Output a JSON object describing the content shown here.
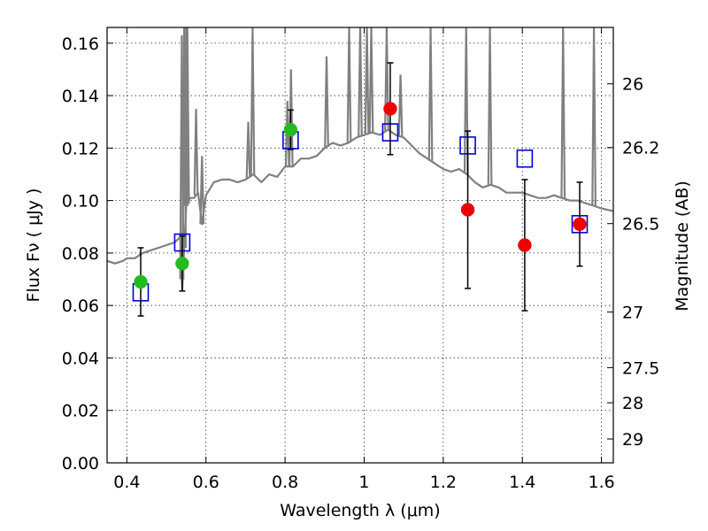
{
  "chart_data": {
    "type": "scatter",
    "xlabel": "Wavelength  λ (μm)",
    "ylabel": "Flux  Fν  ( μJy )",
    "y2label": "Magnitude (AB)",
    "xlim": [
      0.35,
      1.63
    ],
    "ylim": [
      0.0,
      0.166
    ],
    "xticks": [
      0.4,
      0.6,
      0.8,
      1.0,
      1.2,
      1.4,
      1.6
    ],
    "xtick_labels": [
      "0.4",
      "0.6",
      "0.8",
      "1",
      "1.2",
      "1.4",
      "1.6"
    ],
    "yticks": [
      0.0,
      0.02,
      0.04,
      0.06,
      0.08,
      0.1,
      0.12,
      0.14,
      0.16
    ],
    "ytick_labels": [
      "0.00",
      "0.02",
      "0.04",
      "0.06",
      "0.08",
      "0.10",
      "0.12",
      "0.14",
      "0.16"
    ],
    "y2ticks": [
      {
        "label": "26",
        "flux": 0.1445
      },
      {
        "label": "26.2",
        "flux": 0.1202
      },
      {
        "label": "26.5",
        "flux": 0.0912
      },
      {
        "label": "27",
        "flux": 0.0575
      },
      {
        "label": "27.5",
        "flux": 0.0363
      },
      {
        "label": "28",
        "flux": 0.0229
      },
      {
        "label": "29",
        "flux": 0.0091
      }
    ],
    "grid": true,
    "series": [
      {
        "kind": "model-spectrum",
        "color": "#808080",
        "x": [
          0.35,
          0.37,
          0.39,
          0.4,
          0.42,
          0.44,
          0.46,
          0.48,
          0.5,
          0.52,
          0.535,
          0.54,
          0.55,
          0.56,
          0.57,
          0.58,
          0.59,
          0.6,
          0.62,
          0.64,
          0.66,
          0.68,
          0.7,
          0.72,
          0.74,
          0.76,
          0.78,
          0.8,
          0.82,
          0.84,
          0.86,
          0.88,
          0.9,
          0.92,
          0.94,
          0.96,
          0.98,
          1.0,
          1.02,
          1.04,
          1.06,
          1.08,
          1.1,
          1.12,
          1.14,
          1.16,
          1.18,
          1.2,
          1.22,
          1.24,
          1.26,
          1.28,
          1.3,
          1.32,
          1.34,
          1.36,
          1.38,
          1.4,
          1.42,
          1.44,
          1.46,
          1.48,
          1.5,
          1.52,
          1.54,
          1.56,
          1.58,
          1.6,
          1.63
        ],
        "y": [
          0.077,
          0.076,
          0.077,
          0.078,
          0.078,
          0.08,
          0.081,
          0.082,
          0.083,
          0.084,
          0.086,
          0.066,
          0.098,
          0.101,
          0.101,
          0.103,
          0.091,
          0.102,
          0.107,
          0.108,
          0.108,
          0.107,
          0.108,
          0.11,
          0.107,
          0.11,
          0.109,
          0.113,
          0.113,
          0.116,
          0.116,
          0.117,
          0.12,
          0.122,
          0.121,
          0.122,
          0.124,
          0.125,
          0.126,
          0.125,
          0.127,
          0.125,
          0.124,
          0.121,
          0.118,
          0.116,
          0.114,
          0.112,
          0.111,
          0.112,
          0.11,
          0.107,
          0.105,
          0.106,
          0.105,
          0.103,
          0.103,
          0.103,
          0.102,
          0.101,
          0.101,
          0.102,
          0.101,
          0.1,
          0.1,
          0.099,
          0.098,
          0.097,
          0.096
        ]
      },
      {
        "kind": "model-lines",
        "color": "#808080",
        "x": [
          0.539,
          0.545,
          0.55,
          0.553,
          0.575,
          0.59,
          0.707,
          0.718,
          0.806,
          0.815,
          0.905,
          0.962,
          0.99,
          1.007,
          1.018,
          1.057,
          1.092,
          1.168,
          1.258,
          1.318,
          1.503,
          1.581
        ],
        "peak": [
          0.163,
          0.166,
          0.166,
          0.166,
          0.135,
          0.117,
          0.13,
          0.166,
          0.138,
          0.15,
          0.155,
          0.166,
          0.166,
          0.166,
          0.166,
          0.166,
          0.148,
          0.166,
          0.166,
          0.166,
          0.166,
          0.166
        ]
      },
      {
        "kind": "model-photometry",
        "color": "#0000dd",
        "x": [
          0.435,
          0.54,
          0.814,
          1.066,
          1.262,
          1.406,
          1.545
        ],
        "y": [
          0.065,
          0.084,
          0.123,
          0.126,
          0.121,
          0.116,
          0.091
        ]
      },
      {
        "kind": "observed",
        "color": "#22bb22",
        "x": [
          0.435,
          0.54,
          0.814
        ],
        "y": [
          0.069,
          0.076,
          0.127
        ],
        "err": [
          0.013,
          0.0105,
          0.0075
        ]
      },
      {
        "kind": "observed",
        "color": "#ee0000",
        "x": [
          1.066,
          1.262,
          1.406,
          1.545
        ],
        "y": [
          0.135,
          0.0965,
          0.083,
          0.091
        ],
        "err": [
          0.0175,
          0.03,
          0.025,
          0.016
        ]
      }
    ]
  }
}
